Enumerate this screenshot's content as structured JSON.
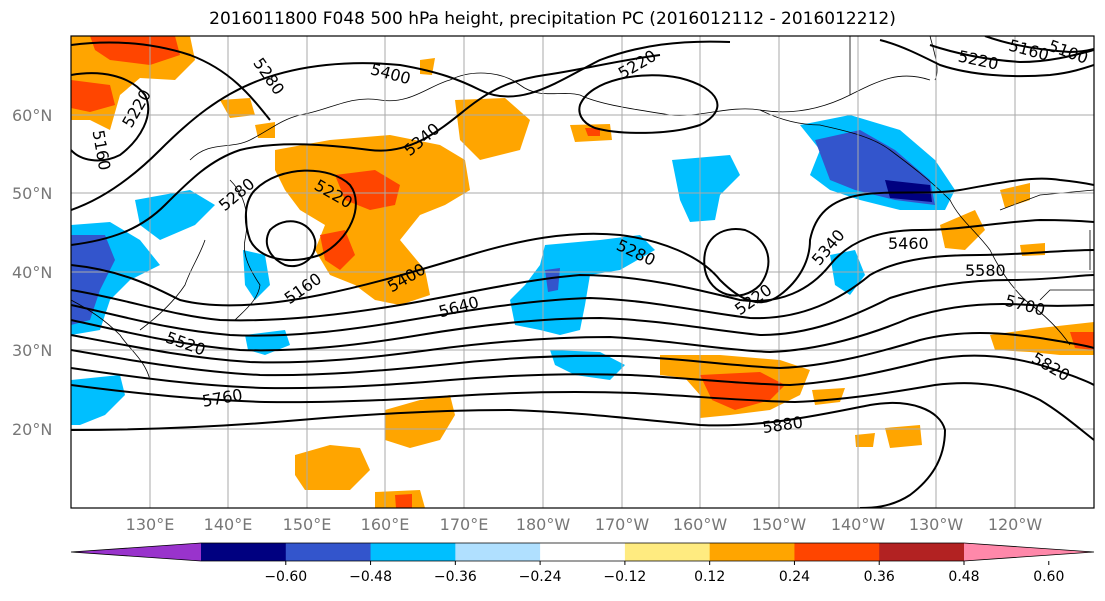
{
  "title": "2016011800 F048 500 hPa height, precipitation PC (2016012112 - 2016012212)",
  "map": {
    "lat_labels": [
      "60°N",
      "50°N",
      "40°N",
      "30°N",
      "20°N"
    ],
    "lon_labels": [
      "130°E",
      "140°E",
      "150°E",
      "160°E",
      "170°E",
      "180°W",
      "170°W",
      "160°W",
      "150°W",
      "140°W",
      "130°W",
      "120°W"
    ],
    "contour_labels": [
      "5280",
      "5400",
      "5220",
      "5160",
      "5220",
      "5340",
      "5280",
      "5220",
      "5160",
      "5400",
      "5640",
      "5520",
      "5760",
      "5280",
      "5220",
      "5340",
      "5460",
      "5580",
      "5700",
      "5820",
      "5880",
      "5220",
      "5160",
      "5100"
    ]
  },
  "colorbar": {
    "colors": [
      "#9933cc",
      "#000080",
      "#3355cc",
      "#00bfff",
      "#b0e0ff",
      "#ffffff",
      "#ffeb80",
      "#ffa500",
      "#ff4500",
      "#b22222",
      "#ff88aa"
    ],
    "tick_labels": [
      "−0.60",
      "−0.48",
      "−0.36",
      "−0.24",
      "−0.12",
      "0.12",
      "0.24",
      "0.36",
      "0.48",
      "0.60"
    ]
  }
}
